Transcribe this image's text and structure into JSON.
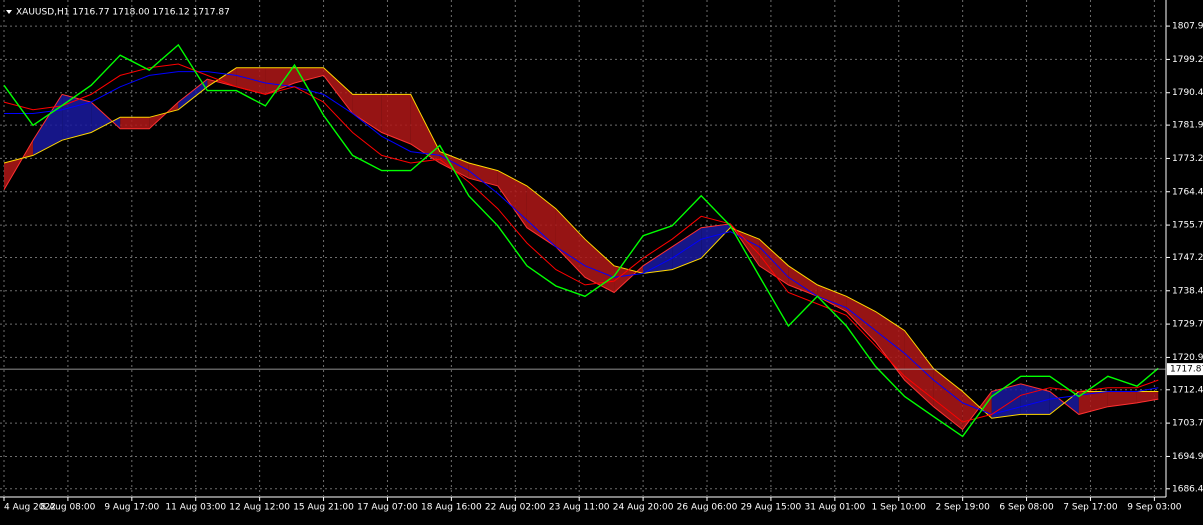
{
  "chart_data": {
    "type": "line",
    "title": "XAUUSD,H1  1716.77 1718.00 1716.12 1717.87",
    "x": [
      0,
      15,
      30,
      45,
      60,
      75,
      90,
      105,
      120,
      135,
      150,
      165,
      180,
      195,
      210,
      225,
      240,
      255,
      270,
      285,
      300,
      315,
      330,
      345,
      360,
      375,
      390,
      405,
      420,
      435,
      450,
      465,
      480,
      495,
      510,
      525,
      540,
      555,
      570,
      585,
      596
    ],
    "series": [
      {
        "color": "#ff3030",
        "values": [
          1765,
          1778,
          1790,
          1788,
          1781,
          1781,
          1788,
          1794,
          1792,
          1790,
          1793,
          1795,
          1785,
          1780,
          1777,
          1772,
          1768,
          1766,
          1755,
          1750,
          1742,
          1738,
          1745,
          1750,
          1755,
          1756,
          1745,
          1740,
          1737,
          1733,
          1725,
          1715,
          1708,
          1702,
          1712,
          1714,
          1712,
          1706,
          1708,
          1709,
          1710
        ]
      },
      {
        "color": "#ffd700",
        "values": [
          1772,
          1774,
          1778,
          1780,
          1784,
          1784,
          1786,
          1792,
          1797,
          1797,
          1797,
          1797,
          1790,
          1790,
          1790,
          1775,
          1772,
          1770,
          1766,
          1760,
          1752,
          1745,
          1743,
          1744,
          1747,
          1755,
          1752,
          1745,
          1740,
          1737,
          1733,
          1728,
          1718,
          1712,
          1705,
          1706,
          1706,
          1712,
          1712,
          1712,
          1712
        ]
      },
      {
        "color": "#0000ff",
        "values": [
          1785,
          1785,
          1786,
          1788,
          1792,
          1795,
          1796,
          1796,
          1795,
          1793,
          1792,
          1790,
          1785,
          1779,
          1775,
          1774,
          1770,
          1764,
          1757,
          1750,
          1745,
          1742,
          1743,
          1747,
          1752,
          1754,
          1750,
          1742,
          1737,
          1734,
          1728,
          1722,
          1715,
          1709,
          1706,
          1708,
          1710,
          1711,
          1712,
          1712,
          1713
        ]
      },
      {
        "color": "#ff0000",
        "values": [
          1788,
          1786,
          1787,
          1790,
          1795,
          1797,
          1798,
          1795,
          1792,
          1790,
          1792,
          1788,
          1780,
          1774,
          1772,
          1773,
          1767,
          1760,
          1751,
          1744,
          1740,
          1741,
          1747,
          1752,
          1758,
          1756,
          1748,
          1738,
          1735,
          1732,
          1724,
          1716,
          1710,
          1704,
          1706,
          1711,
          1713,
          1712,
          1713,
          1713,
          1715
        ]
      },
      {
        "color": "#00ff00",
        "values": [
          1792.4,
          1781.9,
          1787.1,
          1792.4,
          1800.3,
          1796.4,
          1803,
          1791,
          1791,
          1787,
          1797.7,
          1784.5,
          1774,
          1770,
          1770,
          1776.6,
          1763.4,
          1755.5,
          1745,
          1739.7,
          1737,
          1742.3,
          1752.9,
          1755.5,
          1763.4,
          1755.5,
          1742.3,
          1729.2,
          1737,
          1729.2,
          1718.6,
          1710.7,
          1705.4,
          1700.2,
          1710.7,
          1716,
          1716,
          1710.7,
          1716,
          1713.4,
          1718.1
        ]
      }
    ],
    "cloud": {
      "series": [
        0,
        1
      ],
      "up_color": "#1a1aa0",
      "down_color": "#b01818"
    },
    "xlim": [
      0,
      600
    ],
    "xticks": [
      {
        "value": 0,
        "label": "4 Aug 2022"
      },
      {
        "value": 33,
        "label": "8 Aug 08:00"
      },
      {
        "value": 66,
        "label": "9 Aug 17:00"
      },
      {
        "value": 99,
        "label": "11 Aug 03:00"
      },
      {
        "value": 132,
        "label": "12 Aug 12:00"
      },
      {
        "value": 165,
        "label": "15 Aug 21:00"
      },
      {
        "value": 198,
        "label": "17 Aug 07:00"
      },
      {
        "value": 231,
        "label": "18 Aug 16:00"
      },
      {
        "value": 264,
        "label": "22 Aug 02:00"
      },
      {
        "value": 297,
        "label": "23 Aug 11:00"
      },
      {
        "value": 330,
        "label": "24 Aug 20:00"
      },
      {
        "value": 363,
        "label": "26 Aug 06:00"
      },
      {
        "value": 396,
        "label": "29 Aug 15:00"
      },
      {
        "value": 429,
        "label": "31 Aug 01:00"
      },
      {
        "value": 462,
        "label": "1 Sep 10:00"
      },
      {
        "value": 495,
        "label": "2 Sep 19:00"
      },
      {
        "value": 528,
        "label": "6 Sep 08:00"
      },
      {
        "value": 561,
        "label": "7 Sep 17:00"
      },
      {
        "value": 594,
        "label": "9 Sep 03:00"
      }
    ],
    "ylim": [
      1684.3,
      1814.8
    ],
    "yticks": [
      1807.95,
      {
        "value": 1799.2,
        "label": "1799.20"
      },
      1790.45,
      1781.95,
      {
        "value": 1773.2,
        "label": "1773.20"
      },
      1764.45,
      {
        "value": 1755.7,
        "label": "1755.70"
      },
      {
        "value": 1747.2,
        "label": "1747.20"
      },
      1738.45,
      {
        "value": 1729.7,
        "label": "1729.70"
      },
      1720.95,
      1712.45,
      {
        "value": 1703.7,
        "label": "1703.70"
      },
      1694.95,
      1686.45
    ],
    "price_line": 1717.87,
    "grid": true
  }
}
